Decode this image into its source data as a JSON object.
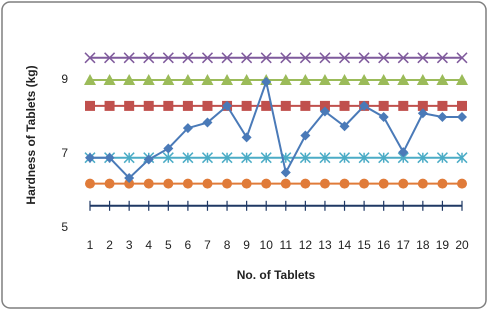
{
  "chart_data": {
    "type": "line",
    "xlabel": "No. of Tablets",
    "ylabel": "Hardness of Tablets (kg)",
    "categories": [
      "1",
      "2",
      "3",
      "4",
      "5",
      "6",
      "7",
      "8",
      "9",
      "10",
      "11",
      "12",
      "13",
      "14",
      "15",
      "16",
      "17",
      "18",
      "19",
      "20"
    ],
    "ylim": [
      5,
      10
    ],
    "yticks": [
      5,
      7,
      9
    ],
    "grid": false,
    "series": [
      {
        "color": "#7f5a9c",
        "marker": "x",
        "values": [
          9.6,
          9.6,
          9.6,
          9.6,
          9.6,
          9.6,
          9.6,
          9.6,
          9.6,
          9.6,
          9.6,
          9.6,
          9.6,
          9.6,
          9.6,
          9.6,
          9.6,
          9.6,
          9.6,
          9.6
        ]
      },
      {
        "color": "#9bbb59",
        "marker": "triangle",
        "values": [
          9.0,
          9.0,
          9.0,
          9.0,
          9.0,
          9.0,
          9.0,
          9.0,
          9.0,
          9.0,
          9.0,
          9.0,
          9.0,
          9.0,
          9.0,
          9.0,
          9.0,
          9.0,
          9.0,
          9.0
        ]
      },
      {
        "color": "#c0504d",
        "marker": "square",
        "values": [
          8.3,
          8.3,
          8.3,
          8.3,
          8.3,
          8.3,
          8.3,
          8.3,
          8.3,
          8.3,
          8.3,
          8.3,
          8.3,
          8.3,
          8.3,
          8.3,
          8.3,
          8.3,
          8.3,
          8.3
        ]
      },
      {
        "color": "#4bacc6",
        "marker": "star",
        "values": [
          6.9,
          6.9,
          6.9,
          6.9,
          6.9,
          6.9,
          6.9,
          6.9,
          6.9,
          6.9,
          6.9,
          6.9,
          6.9,
          6.9,
          6.9,
          6.9,
          6.9,
          6.9,
          6.9,
          6.9
        ]
      },
      {
        "color": "#e07b39",
        "marker": "circle",
        "values": [
          6.2,
          6.2,
          6.2,
          6.2,
          6.2,
          6.2,
          6.2,
          6.2,
          6.2,
          6.2,
          6.2,
          6.2,
          6.2,
          6.2,
          6.2,
          6.2,
          6.2,
          6.2,
          6.2,
          6.2
        ]
      },
      {
        "color": "#1f3864",
        "marker": "plus",
        "values": [
          5.6,
          5.6,
          5.6,
          5.6,
          5.6,
          5.6,
          5.6,
          5.6,
          5.6,
          5.6,
          5.6,
          5.6,
          5.6,
          5.6,
          5.6,
          5.6,
          5.6,
          5.6,
          5.6,
          5.6
        ]
      },
      {
        "color": "#4a7ab8",
        "marker": "diamond",
        "values": [
          6.9,
          6.9,
          6.35,
          6.85,
          7.15,
          7.7,
          7.85,
          8.3,
          7.45,
          8.95,
          6.5,
          7.5,
          8.15,
          7.75,
          8.3,
          8.0,
          7.05,
          8.1,
          8.0,
          8.0
        ]
      }
    ]
  }
}
